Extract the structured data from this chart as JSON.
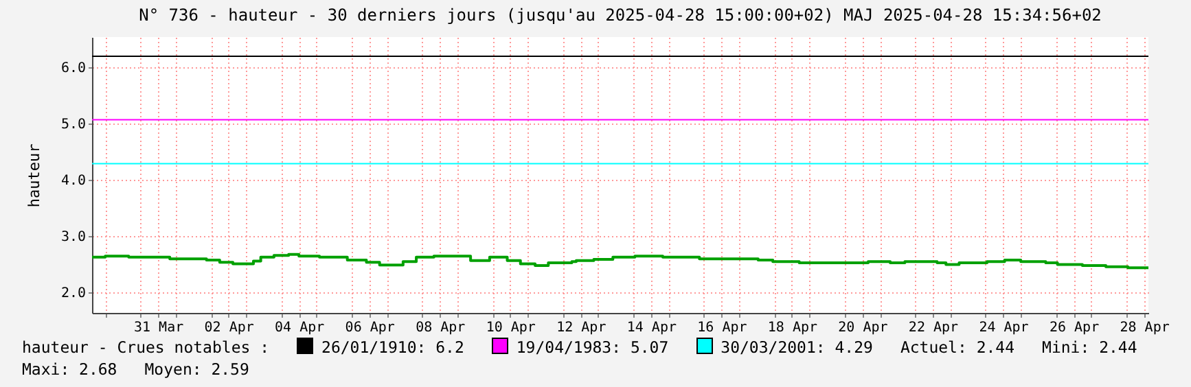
{
  "chart_data": {
    "type": "step",
    "title": "N° 736 - hauteur - 30 derniers jours (jusqu'au 2025-04-28 15:00:00+02) MAJ 2025-04-28 15:34:56+02",
    "ylabel": "hauteur",
    "x": [
      "2025-03-29T15:00",
      "2025-03-30T00:00",
      "2025-03-30T16:00",
      "2025-03-31T20:00",
      "2025-04-01T21:00",
      "2025-04-02T06:00",
      "2025-04-02T15:00",
      "2025-04-03T05:00",
      "2025-04-03T10:00",
      "2025-04-03T19:00",
      "2025-04-04T05:00",
      "2025-04-04T12:00",
      "2025-04-05T02:00",
      "2025-04-05T21:00",
      "2025-04-06T10:00",
      "2025-04-06T19:00",
      "2025-04-07T11:00",
      "2025-04-07T20:00",
      "2025-04-08T08:00",
      "2025-04-09T09:00",
      "2025-04-09T22:00",
      "2025-04-10T10:00",
      "2025-04-10T19:00",
      "2025-04-11T05:00",
      "2025-04-11T14:00",
      "2025-04-12T06:00",
      "2025-04-12T09:00",
      "2025-04-12T21:00",
      "2025-04-13T10:00",
      "2025-04-14T01:00",
      "2025-04-14T20:00",
      "2025-04-15T21:00",
      "2025-04-17T13:00",
      "2025-04-17T23:00",
      "2025-04-18T17:00",
      "2025-04-20T16:00",
      "2025-04-21T07:00",
      "2025-04-21T17:00",
      "2025-04-22T15:00",
      "2025-04-22T21:00",
      "2025-04-23T06:00",
      "2025-04-24T01:00",
      "2025-04-24T13:00",
      "2025-04-25T00:00",
      "2025-04-25T17:00",
      "2025-04-26T01:00",
      "2025-04-26T18:00",
      "2025-04-27T10:00",
      "2025-04-28T01:00",
      "2025-04-28T15:00"
    ],
    "series": [
      {
        "color": "#00a000",
        "values": [
          2.63,
          2.65,
          2.63,
          2.6,
          2.58,
          2.54,
          2.51,
          2.56,
          2.63,
          2.66,
          2.68,
          2.65,
          2.63,
          2.58,
          2.54,
          2.49,
          2.55,
          2.63,
          2.65,
          2.57,
          2.63,
          2.57,
          2.51,
          2.48,
          2.53,
          2.55,
          2.57,
          2.59,
          2.63,
          2.65,
          2.63,
          2.6,
          2.58,
          2.55,
          2.53,
          2.55,
          2.53,
          2.55,
          2.53,
          2.5,
          2.53,
          2.55,
          2.58,
          2.55,
          2.53,
          2.5,
          2.48,
          2.46,
          2.44,
          2.44
        ]
      }
    ],
    "xlim": [
      "2025-03-29T15:00",
      "2025-04-28T15:00"
    ],
    "xticks": [
      {
        "value": "2025-03-30T00:00",
        "label": null
      },
      {
        "value": "2025-03-31T00:00",
        "label": null
      },
      {
        "value": "2025-03-31T12:00",
        "label": "31 Mar"
      },
      {
        "value": "2025-04-01T00:00",
        "label": null
      },
      {
        "value": "2025-04-02T00:00",
        "label": null
      },
      {
        "value": "2025-04-02T12:00",
        "label": "02 Apr"
      },
      {
        "value": "2025-04-03T00:00",
        "label": null
      },
      {
        "value": "2025-04-04T00:00",
        "label": null
      },
      {
        "value": "2025-04-04T12:00",
        "label": "04 Apr"
      },
      {
        "value": "2025-04-05T00:00",
        "label": null
      },
      {
        "value": "2025-04-06T00:00",
        "label": null
      },
      {
        "value": "2025-04-06T12:00",
        "label": "06 Apr"
      },
      {
        "value": "2025-04-07T00:00",
        "label": null
      },
      {
        "value": "2025-04-08T00:00",
        "label": null
      },
      {
        "value": "2025-04-08T12:00",
        "label": "08 Apr"
      },
      {
        "value": "2025-04-09T00:00",
        "label": null
      },
      {
        "value": "2025-04-10T00:00",
        "label": null
      },
      {
        "value": "2025-04-10T12:00",
        "label": "10 Apr"
      },
      {
        "value": "2025-04-11T00:00",
        "label": null
      },
      {
        "value": "2025-04-12T00:00",
        "label": null
      },
      {
        "value": "2025-04-12T12:00",
        "label": "12 Apr"
      },
      {
        "value": "2025-04-13T00:00",
        "label": null
      },
      {
        "value": "2025-04-14T00:00",
        "label": null
      },
      {
        "value": "2025-04-14T12:00",
        "label": "14 Apr"
      },
      {
        "value": "2025-04-15T00:00",
        "label": null
      },
      {
        "value": "2025-04-16T00:00",
        "label": null
      },
      {
        "value": "2025-04-16T12:00",
        "label": "16 Apr"
      },
      {
        "value": "2025-04-17T00:00",
        "label": null
      },
      {
        "value": "2025-04-18T00:00",
        "label": null
      },
      {
        "value": "2025-04-18T12:00",
        "label": "18 Apr"
      },
      {
        "value": "2025-04-19T00:00",
        "label": null
      },
      {
        "value": "2025-04-20T00:00",
        "label": null
      },
      {
        "value": "2025-04-20T12:00",
        "label": "20 Apr"
      },
      {
        "value": "2025-04-21T00:00",
        "label": null
      },
      {
        "value": "2025-04-22T00:00",
        "label": null
      },
      {
        "value": "2025-04-22T12:00",
        "label": "22 Apr"
      },
      {
        "value": "2025-04-23T00:00",
        "label": null
      },
      {
        "value": "2025-04-24T00:00",
        "label": null
      },
      {
        "value": "2025-04-24T12:00",
        "label": "24 Apr"
      },
      {
        "value": "2025-04-25T00:00",
        "label": null
      },
      {
        "value": "2025-04-26T00:00",
        "label": null
      },
      {
        "value": "2025-04-26T12:00",
        "label": "26 Apr"
      },
      {
        "value": "2025-04-27T00:00",
        "label": null
      },
      {
        "value": "2025-04-28T00:00",
        "label": null
      },
      {
        "value": "2025-04-28T12:00",
        "label": "28 Apr"
      }
    ],
    "ylim": [
      1.64,
      6.54
    ],
    "yticks": [
      {
        "value": 2,
        "label": "2.0"
      },
      {
        "value": 3,
        "label": "3.0"
      },
      {
        "value": 4,
        "label": "4.0"
      },
      {
        "value": 5,
        "label": "5.0"
      },
      {
        "value": 6,
        "label": "6.0"
      }
    ],
    "grid": true,
    "legend": "bottom",
    "ref_lines": [
      {
        "axis": "y",
        "value": 6.2,
        "label": "26/01/1910: 6.2",
        "color": "#000000"
      },
      {
        "axis": "y",
        "value": 5.07,
        "label": "19/04/1983: 5.07",
        "color": "#ff00ff"
      },
      {
        "axis": "y",
        "value": 4.29,
        "label": "30/03/2001: 4.29",
        "color": "#00ffff"
      }
    ],
    "annotations": [
      "hauteur - Crues notables :",
      "Actuel: 2.44",
      "Mini: 2.44",
      "Maxi: 2.68",
      "Moyen: 2.59"
    ]
  }
}
